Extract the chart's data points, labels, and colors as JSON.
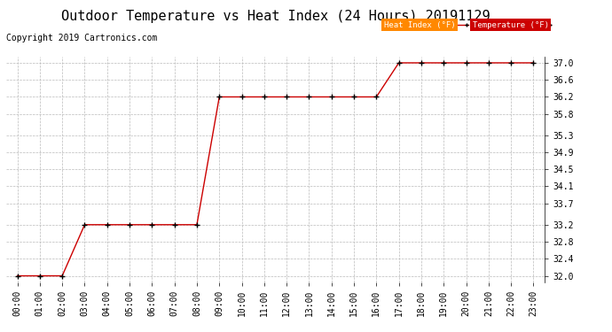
{
  "title": "Outdoor Temperature vs Heat Index (24 Hours) 20191129",
  "copyright_text": "Copyright 2019 Cartronics.com",
  "x_labels": [
    "00:00",
    "01:00",
    "02:00",
    "03:00",
    "04:00",
    "05:00",
    "06:00",
    "07:00",
    "08:00",
    "09:00",
    "10:00",
    "11:00",
    "12:00",
    "13:00",
    "14:00",
    "15:00",
    "16:00",
    "17:00",
    "18:00",
    "19:00",
    "20:00",
    "21:00",
    "22:00",
    "23:00"
  ],
  "y_ticks": [
    32.0,
    32.4,
    32.8,
    33.2,
    33.7,
    34.1,
    34.5,
    34.9,
    35.3,
    35.8,
    36.2,
    36.6,
    37.0
  ],
  "ylim": [
    31.85,
    37.15
  ],
  "temperature": [
    32.0,
    32.0,
    32.0,
    33.2,
    33.2,
    33.2,
    33.2,
    33.2,
    33.2,
    36.2,
    36.2,
    36.2,
    36.2,
    36.2,
    36.2,
    36.2,
    36.2,
    37.0,
    37.0,
    37.0,
    37.0,
    37.0,
    37.0,
    37.0
  ],
  "heat_index": [
    32.0,
    32.0,
    32.0,
    33.2,
    33.2,
    33.2,
    33.2,
    33.2,
    33.2,
    36.2,
    36.2,
    36.2,
    36.2,
    36.2,
    36.2,
    36.2,
    36.2,
    37.0,
    37.0,
    37.0,
    37.0,
    37.0,
    37.0,
    37.0
  ],
  "line_color": "#cc0000",
  "marker_color": "#000000",
  "bg_color": "#ffffff",
  "grid_color": "#bbbbbb",
  "title_fontsize": 11,
  "label_fontsize": 7,
  "copyright_fontsize": 7,
  "legend_heat_index_bg": "#ff8800",
  "legend_temp_bg": "#cc0000",
  "legend_text_color": "#ffffff",
  "legend_text_hi": "Heat Index (°F)",
  "legend_text_temp": "Temperature (°F)"
}
